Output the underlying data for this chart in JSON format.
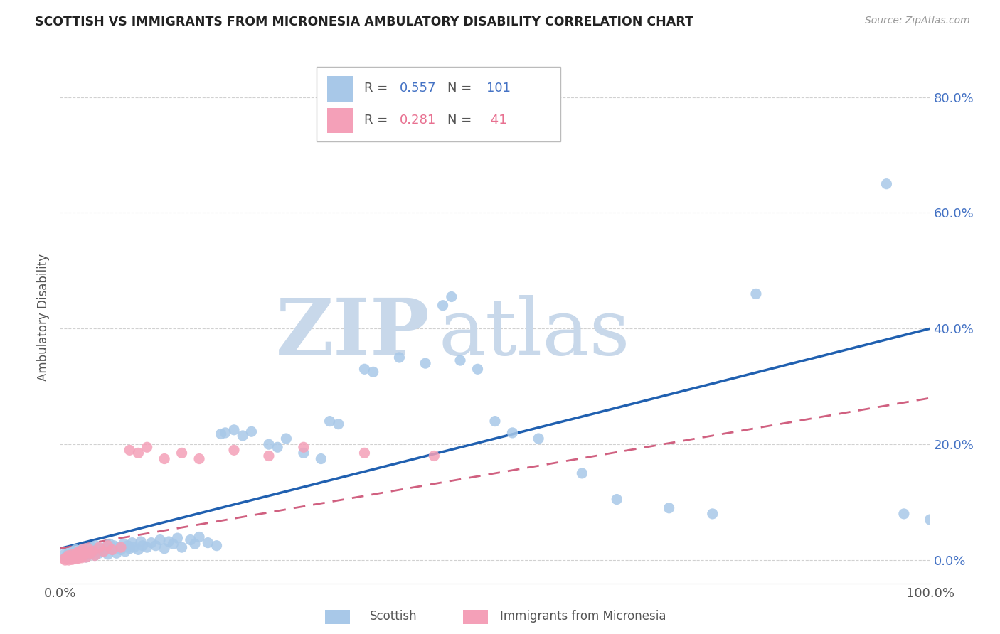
{
  "title": "SCOTTISH VS IMMIGRANTS FROM MICRONESIA AMBULATORY DISABILITY CORRELATION CHART",
  "source": "Source: ZipAtlas.com",
  "ylabel_label": "Ambulatory Disability",
  "xlim": [
    0.0,
    1.0
  ],
  "ylim": [
    -0.04,
    0.88
  ],
  "legend_R_blue": "0.557",
  "legend_N_blue": "101",
  "legend_R_pink": "0.281",
  "legend_N_pink": "41",
  "blue_color": "#a8c8e8",
  "pink_color": "#f4a0b8",
  "blue_line_color": "#2060b0",
  "pink_line_color": "#d06080",
  "blue_line_start_y": 0.02,
  "blue_line_end_y": 0.4,
  "pink_line_start_y": 0.02,
  "pink_line_end_y": 0.28,
  "watermark_zip_color": "#c8d8ea",
  "watermark_atlas_color": "#c8d8ea",
  "grid_color": "#cccccc",
  "background_color": "#ffffff",
  "ytick_vals": [
    0.0,
    0.2,
    0.4,
    0.6,
    0.8
  ],
  "ytick_labels": [
    "0.0%",
    "20.0%",
    "40.0%",
    "60.0%",
    "80.0%"
  ],
  "blue_scatter_x": [
    0.005,
    0.007,
    0.008,
    0.01,
    0.01,
    0.012,
    0.013,
    0.014,
    0.015,
    0.015,
    0.016,
    0.017,
    0.018,
    0.018,
    0.019,
    0.02,
    0.02,
    0.021,
    0.022,
    0.023,
    0.024,
    0.025,
    0.025,
    0.026,
    0.027,
    0.028,
    0.03,
    0.03,
    0.032,
    0.033,
    0.035,
    0.037,
    0.038,
    0.04,
    0.041,
    0.043,
    0.045,
    0.047,
    0.05,
    0.052,
    0.055,
    0.057,
    0.06,
    0.062,
    0.065,
    0.067,
    0.07,
    0.073,
    0.075,
    0.078,
    0.08,
    0.083,
    0.085,
    0.09,
    0.093,
    0.095,
    0.1,
    0.105,
    0.11,
    0.115,
    0.12,
    0.125,
    0.13,
    0.135,
    0.14,
    0.15,
    0.155,
    0.16,
    0.17,
    0.18,
    0.185,
    0.19,
    0.2,
    0.21,
    0.22,
    0.24,
    0.25,
    0.26,
    0.28,
    0.3,
    0.31,
    0.32,
    0.35,
    0.36,
    0.39,
    0.42,
    0.44,
    0.45,
    0.46,
    0.48,
    0.5,
    0.52,
    0.55,
    0.6,
    0.64,
    0.7,
    0.75,
    0.8,
    0.95,
    0.97,
    1.0
  ],
  "blue_scatter_y": [
    0.01,
    0.005,
    0.008,
    0.002,
    0.012,
    0.005,
    0.008,
    0.003,
    0.01,
    0.015,
    0.006,
    0.012,
    0.004,
    0.018,
    0.008,
    0.005,
    0.014,
    0.01,
    0.016,
    0.008,
    0.012,
    0.006,
    0.018,
    0.01,
    0.015,
    0.008,
    0.005,
    0.02,
    0.012,
    0.018,
    0.01,
    0.022,
    0.015,
    0.008,
    0.025,
    0.018,
    0.012,
    0.02,
    0.015,
    0.022,
    0.01,
    0.028,
    0.018,
    0.025,
    0.012,
    0.022,
    0.018,
    0.028,
    0.015,
    0.025,
    0.02,
    0.03,
    0.022,
    0.018,
    0.032,
    0.025,
    0.022,
    0.03,
    0.025,
    0.035,
    0.02,
    0.032,
    0.028,
    0.038,
    0.022,
    0.035,
    0.028,
    0.04,
    0.03,
    0.025,
    0.218,
    0.22,
    0.225,
    0.215,
    0.222,
    0.2,
    0.195,
    0.21,
    0.185,
    0.175,
    0.24,
    0.235,
    0.33,
    0.325,
    0.35,
    0.34,
    0.44,
    0.455,
    0.345,
    0.33,
    0.24,
    0.22,
    0.21,
    0.15,
    0.105,
    0.09,
    0.08,
    0.46,
    0.65,
    0.08,
    0.07
  ],
  "pink_scatter_x": [
    0.005,
    0.006,
    0.008,
    0.01,
    0.01,
    0.012,
    0.013,
    0.014,
    0.015,
    0.016,
    0.017,
    0.018,
    0.019,
    0.02,
    0.021,
    0.022,
    0.023,
    0.025,
    0.026,
    0.028,
    0.03,
    0.032,
    0.035,
    0.038,
    0.04,
    0.045,
    0.05,
    0.055,
    0.06,
    0.07,
    0.08,
    0.09,
    0.1,
    0.12,
    0.14,
    0.16,
    0.2,
    0.24,
    0.28,
    0.35,
    0.43
  ],
  "pink_scatter_y": [
    0.002,
    0.0,
    0.005,
    0.008,
    0.0,
    0.003,
    0.006,
    0.001,
    0.01,
    0.004,
    0.008,
    0.002,
    0.012,
    0.006,
    0.003,
    0.015,
    0.008,
    0.004,
    0.018,
    0.01,
    0.005,
    0.02,
    0.012,
    0.016,
    0.008,
    0.022,
    0.015,
    0.025,
    0.018,
    0.022,
    0.19,
    0.185,
    0.195,
    0.175,
    0.185,
    0.175,
    0.19,
    0.18,
    0.195,
    0.185,
    0.18
  ]
}
